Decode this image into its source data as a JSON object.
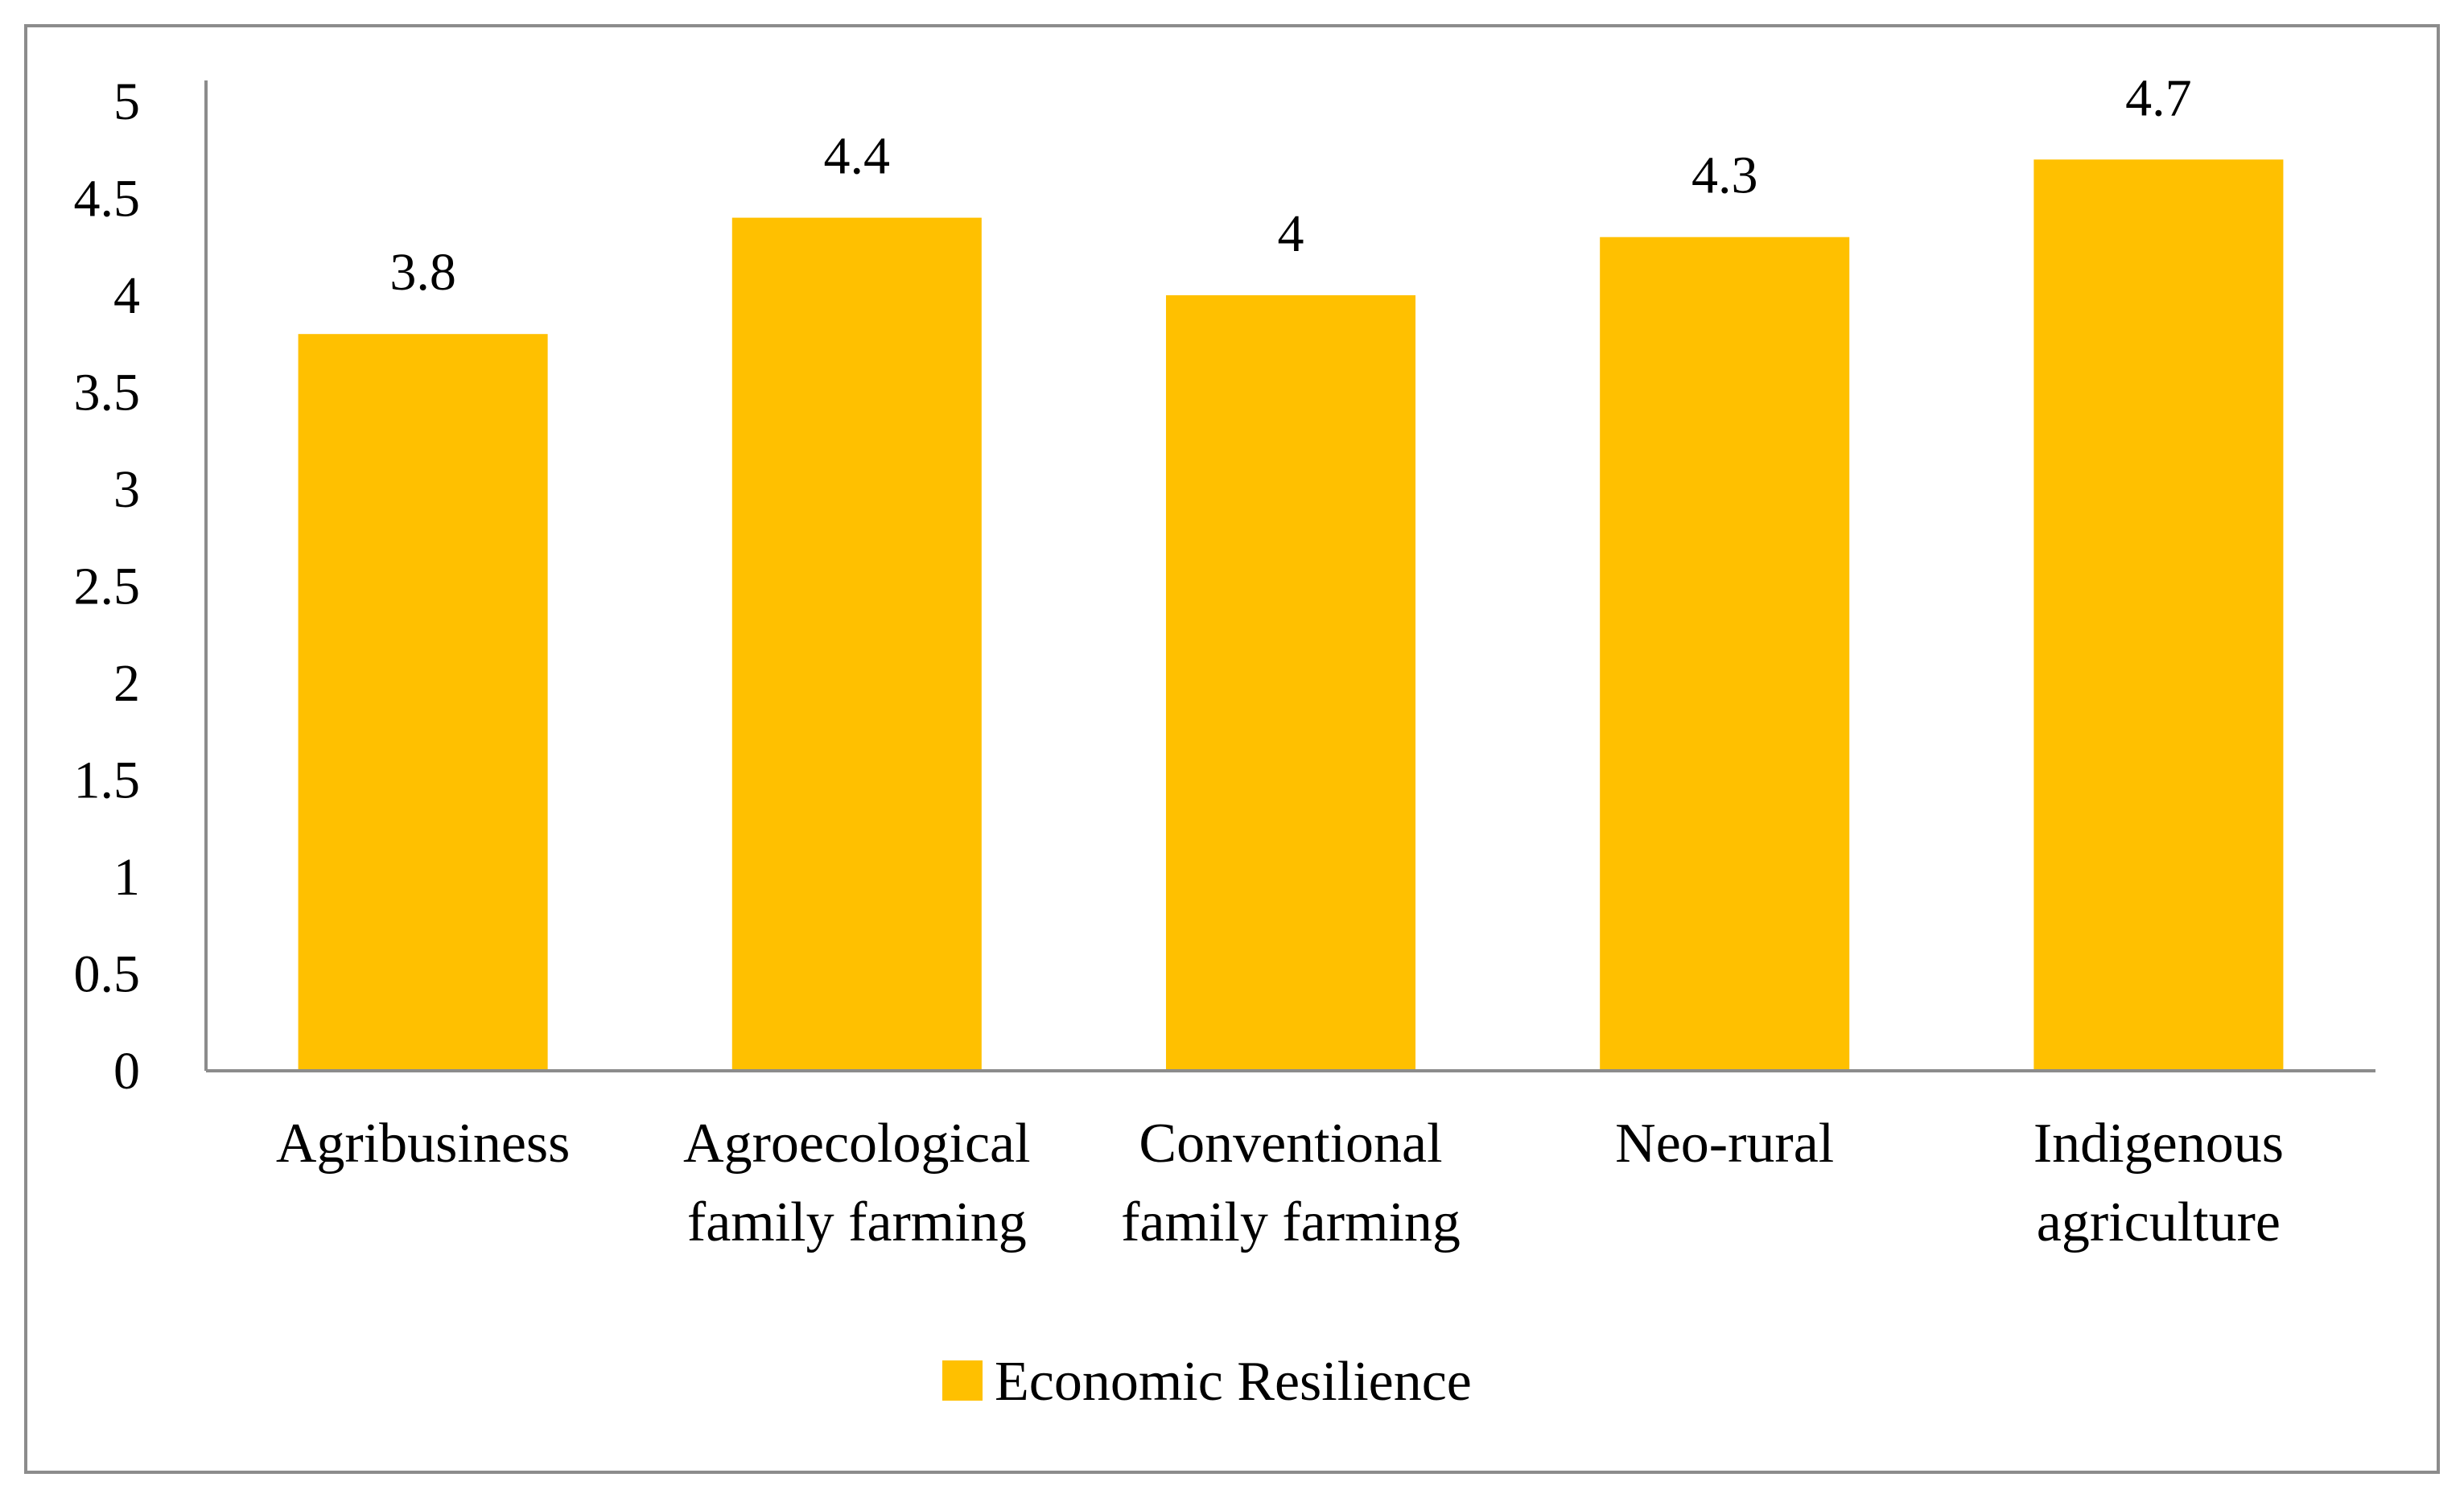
{
  "chart_data": {
    "type": "bar",
    "title": "",
    "xlabel": "",
    "ylabel": "",
    "categories": [
      [
        "Agribusiness"
      ],
      [
        "Agroecological",
        "family farming"
      ],
      [
        "Conventional",
        "family farming"
      ],
      [
        "Neo-rural"
      ],
      [
        "Indigenous",
        "agriculture"
      ]
    ],
    "series": [
      {
        "name": "Economic Resilience",
        "color": "#FFC000",
        "values": [
          3.8,
          4.4,
          4,
          4.3,
          4.7
        ],
        "value_labels": [
          "3.8",
          "4.4",
          "4",
          "4.3",
          "4.7"
        ]
      }
    ],
    "ylim": [
      0,
      5
    ],
    "yticks": [
      "0",
      "0.5",
      "1",
      "1.5",
      "2",
      "2.5",
      "3",
      "3.5",
      "4",
      "4.5",
      "5"
    ],
    "grid": false,
    "legend": "bottom-center",
    "axis_color": "#8c8c8c"
  }
}
